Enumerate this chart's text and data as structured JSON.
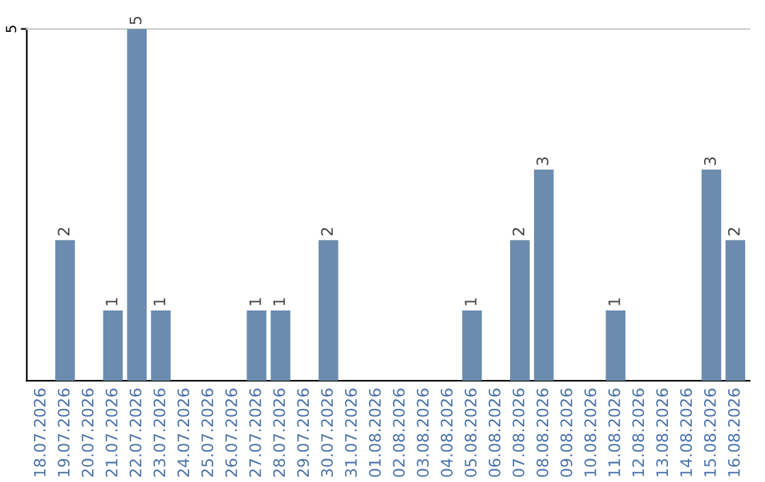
{
  "chart_data": {
    "type": "bar",
    "categories": [
      "18.07.2026",
      "19.07.2026",
      "20.07.2026",
      "21.07.2026",
      "22.07.2026",
      "23.07.2026",
      "24.07.2026",
      "25.07.2026",
      "26.07.2026",
      "27.07.2026",
      "28.07.2026",
      "29.07.2026",
      "30.07.2026",
      "31.07.2026",
      "01.08.2026",
      "02.08.2026",
      "03.08.2026",
      "04.08.2026",
      "05.08.2026",
      "06.08.2026",
      "07.08.2026",
      "08.08.2026",
      "09.08.2026",
      "10.08.2026",
      "11.08.2026",
      "12.08.2026",
      "13.08.2026",
      "14.08.2026",
      "15.08.2026",
      "16.08.2026"
    ],
    "values": [
      0,
      2,
      0,
      1,
      5,
      1,
      0,
      0,
      0,
      1,
      1,
      0,
      2,
      0,
      0,
      0,
      0,
      0,
      1,
      0,
      2,
      3,
      0,
      0,
      1,
      0,
      0,
      0,
      3,
      2
    ],
    "value_labels": [
      null,
      "2",
      null,
      "1",
      "5",
      "1",
      null,
      null,
      null,
      "1",
      "1",
      null,
      "2",
      null,
      null,
      null,
      null,
      null,
      "1",
      null,
      "2",
      "3",
      null,
      null,
      "1",
      null,
      null,
      null,
      "3",
      "2"
    ],
    "color": "#6b8cae",
    "ylim": [
      0,
      5
    ],
    "yticks": [
      5
    ]
  }
}
